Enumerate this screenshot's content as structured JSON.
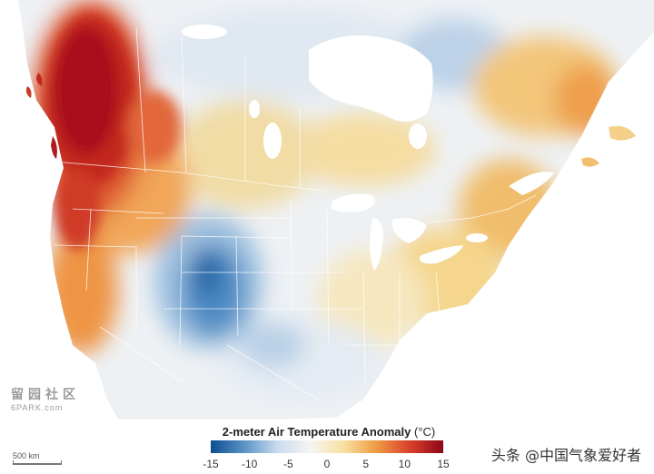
{
  "legend": {
    "title": "2-meter Air Temperature Anomaly",
    "unit": "(°C)",
    "ticks": [
      "-15",
      "-10",
      "-5",
      "0",
      "5",
      "10",
      "15"
    ],
    "colors": [
      "#0c4e8f",
      "#5a92c6",
      "#c9dbee",
      "#f5f5f2",
      "#f8e1a0",
      "#ee9a44",
      "#d8402a",
      "#8d0717"
    ]
  },
  "scale_bar": {
    "label": "500 km"
  },
  "watermark": {
    "cn": "留园社区",
    "en": "6PARK.com"
  },
  "credit": "头条 @中国气象爱好者",
  "map_colors": {
    "land_neutral": "#eef1f4",
    "water": "#ffffff",
    "borders": "#ffffff",
    "warm_core": "#a9111d",
    "cold_core": "#2c6aa8"
  }
}
